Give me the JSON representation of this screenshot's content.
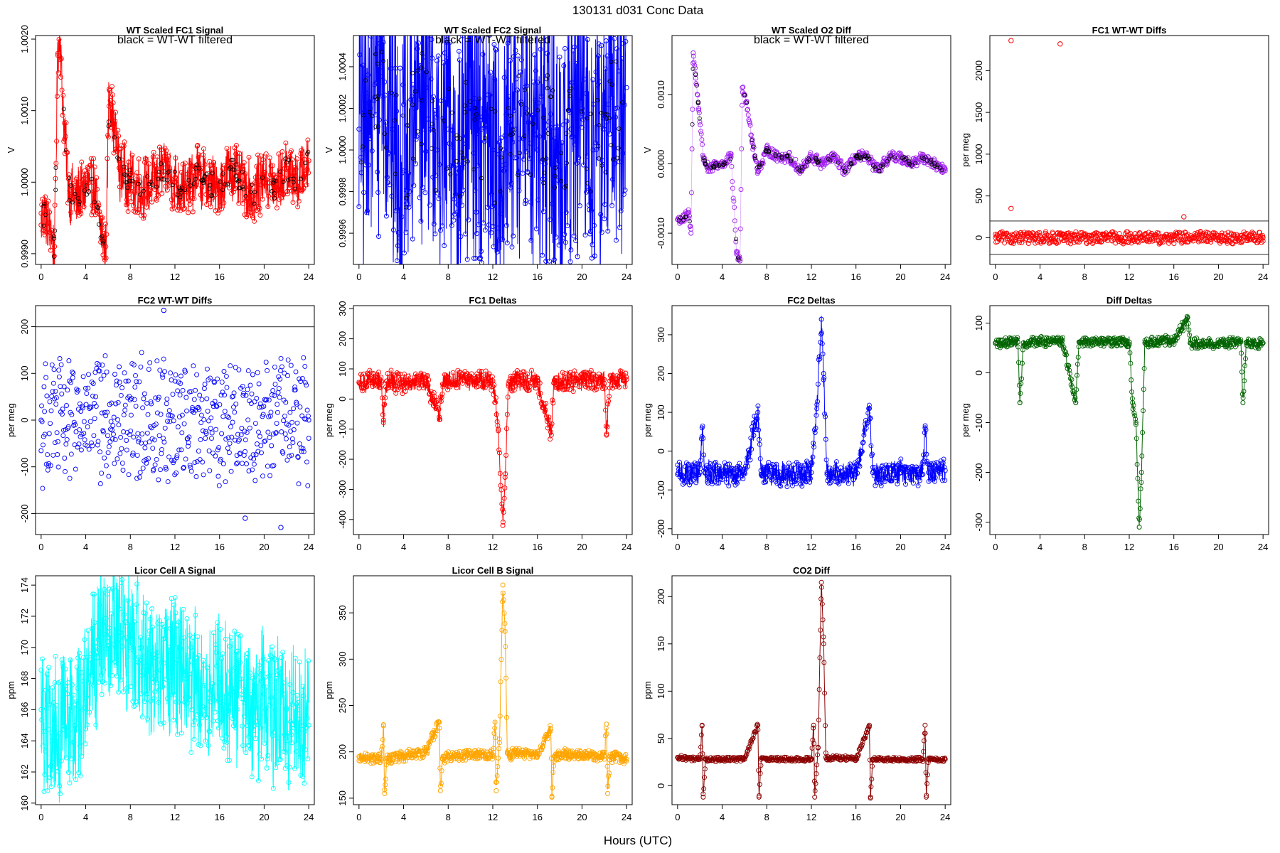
{
  "figure": {
    "title": "130131    d031    Conc Data",
    "xlabel": "Hours (UTC)",
    "colors": {
      "axis": "#000000",
      "annotation": "#000000",
      "ref_line": "#555555"
    }
  },
  "chart_data": [
    {
      "type": "line",
      "title": "WT Scaled FC1 Signal",
      "ylabel": "V",
      "annotation": "black = WT-WT filtered",
      "color": "#ff0000",
      "overlay_color": "#000000",
      "x_ticks": [
        0,
        4,
        8,
        12,
        16,
        20,
        24
      ],
      "xlim": [
        -0.5,
        24.5
      ],
      "y_ticks": [
        0.999,
        1.0,
        1.001,
        1.002
      ],
      "y_tick_labels": [
        "0.9990",
        "1.0000",
        "1.0010",
        "1.0020"
      ],
      "ylim": [
        0.99885,
        1.00205
      ],
      "x": [
        0,
        0.4,
        0.8,
        1.2,
        1.5,
        1.7,
        2.1,
        2.6,
        3.2,
        4,
        4.6,
        5.1,
        5.5,
        5.8,
        6.1,
        7,
        8,
        9,
        10,
        11,
        12,
        13,
        14,
        15,
        16,
        17,
        18,
        19,
        20,
        21,
        22,
        23,
        24
      ],
      "values": [
        0.9994,
        0.9996,
        0.9993,
        0.9991,
        1.0018,
        1.0021,
        1.0006,
        0.9998,
        0.9998,
        0.9999,
        1.0,
        0.9996,
        0.9992,
        0.9991,
        1.0013,
        1.0002,
        1.0,
        0.9999,
        1.0,
        1.0002,
        1.0,
        0.9999,
        1.0001,
        1.0,
        0.9999,
        1.0002,
        1.0,
        0.9998,
        1.0001,
        0.9999,
        1.0002,
        1.0,
        1.0003
      ],
      "spread": 0.00055
    },
    {
      "type": "line",
      "title": "WT Scaled FC2 Signal",
      "ylabel": "V",
      "annotation": "black = WT-WT filtered",
      "color": "#0000ff",
      "overlay_color": "#000000",
      "x_ticks": [
        0,
        4,
        8,
        12,
        16,
        20,
        24
      ],
      "xlim": [
        -0.5,
        24.5
      ],
      "y_ticks": [
        0.9996,
        0.9998,
        1.0,
        1.0002,
        1.0004
      ],
      "y_tick_labels": [
        "0.9996",
        "0.9998",
        "1.0000",
        "1.0002",
        "1.0004"
      ],
      "ylim": [
        0.99945,
        1.00055
      ],
      "x": [
        0,
        1,
        2,
        3,
        4,
        5,
        6,
        7,
        8,
        9,
        10,
        11,
        12,
        13,
        14,
        15,
        16,
        17,
        18,
        19,
        20,
        21,
        22,
        23,
        24
      ],
      "values": [
        1.0001,
        1.0002,
        1.0004,
        1.0001,
        0.9999,
        1.0002,
        1.0003,
        1.0,
        1.0001,
        0.9999,
        1.0002,
        1.0001,
        1.0,
        0.9999,
        1.0001,
        1.0002,
        1.0,
        1.0001,
        0.9999,
        1.0001,
        1.0002,
        1.0,
        1.0001,
        1.0002,
        1.0003
      ],
      "spread": 0.0009
    },
    {
      "type": "scatter",
      "title": "WT Scaled O2 Diff",
      "ylabel": "V",
      "annotation": "black = WT-WT filtered",
      "color": "#a020f0",
      "overlay_color": "#000000",
      "x_ticks": [
        0,
        4,
        8,
        12,
        16,
        20,
        24
      ],
      "xlim": [
        -0.5,
        24.5
      ],
      "y_ticks": [
        -0.001,
        0.0,
        0.001
      ],
      "y_tick_labels": [
        "-0.0010",
        "0.0000",
        "0.0010"
      ],
      "ylim": [
        -0.00145,
        0.00185
      ],
      "x": [
        0,
        0.6,
        1.0,
        1.2,
        1.4,
        1.6,
        1.9,
        2.3,
        2.8,
        3.5,
        4.2,
        4.8,
        5.3,
        5.6,
        5.8,
        6.2,
        6.7,
        7.2,
        8,
        9,
        10,
        11,
        12,
        13,
        14,
        15,
        16,
        17,
        18,
        19,
        20,
        21,
        22,
        23,
        24
      ],
      "values": [
        -0.0008,
        -0.0008,
        -0.0007,
        -0.001,
        0.0016,
        0.0013,
        0.0008,
        0.0001,
        -0.0001,
        0.0,
        0.0,
        0.0001,
        -0.0013,
        -0.0014,
        0.0011,
        0.0009,
        0.0003,
        -0.0001,
        0.0002,
        0.0001,
        0.0001,
        -0.0001,
        0.0001,
        0.0,
        0.0001,
        -0.0001,
        0.0001,
        0.0001,
        -0.0001,
        0.0001,
        0.0001,
        0.0,
        0.0001,
        0.0,
        -0.0001
      ],
      "spread": 0.0001
    },
    {
      "type": "scatter",
      "title": "FC1 WT-WT Diffs",
      "ylabel": "per meg",
      "color": "#ff0000",
      "x_ticks": [
        0,
        4,
        8,
        12,
        16,
        20,
        24
      ],
      "xlim": [
        -0.5,
        24.5
      ],
      "y_ticks": [
        0,
        500,
        1000,
        1500,
        2000
      ],
      "y_tick_labels": [
        "0",
        "500",
        "1000",
        "1500",
        "2000"
      ],
      "ylim": [
        -320,
        2420
      ],
      "hlines": [
        200,
        -200
      ],
      "outliers": [
        [
          1.4,
          2360
        ],
        [
          5.8,
          2320
        ],
        [
          1.4,
          350
        ],
        [
          16.9,
          250
        ]
      ],
      "x": [
        0,
        24
      ],
      "values": [
        0,
        0
      ],
      "spread": 90
    },
    {
      "type": "scatter",
      "title": "FC2 WT-WT Diffs",
      "ylabel": "per meg",
      "color": "#0000ff",
      "x_ticks": [
        0,
        4,
        8,
        12,
        16,
        20,
        24
      ],
      "xlim": [
        -0.5,
        24.5
      ],
      "y_ticks": [
        -200,
        -100,
        0,
        100,
        200
      ],
      "y_tick_labels": [
        "-200",
        "-100",
        "0",
        "100",
        "200"
      ],
      "ylim": [
        -245,
        245
      ],
      "hlines": [
        200,
        -200
      ],
      "outliers": [
        [
          11,
          235
        ],
        [
          21.5,
          -230
        ],
        [
          18.3,
          -210
        ]
      ],
      "x": [
        0,
        24
      ],
      "values": [
        0,
        0
      ],
      "spread": 170
    },
    {
      "type": "line",
      "title": "FC1 Deltas",
      "ylabel": "per meg",
      "color": "#ff0000",
      "x_ticks": [
        0,
        4,
        8,
        12,
        16,
        20,
        24
      ],
      "xlim": [
        -0.5,
        24.5
      ],
      "y_ticks": [
        -400,
        -300,
        -200,
        -100,
        0,
        100,
        200,
        300
      ],
      "y_tick_labels": [
        "-400",
        "-300",
        "-200",
        "-100",
        "0",
        "100",
        "200",
        "300"
      ],
      "ylim": [
        -450,
        310
      ],
      "x": [
        0,
        2,
        2.2,
        2.5,
        4,
        6,
        7.2,
        7.5,
        8,
        10,
        12,
        12.5,
        12.9,
        13.1,
        13.4,
        14,
        16,
        17.2,
        17.5,
        18,
        20,
        22,
        22.2,
        22.5,
        24
      ],
      "values": [
        55,
        60,
        -70,
        60,
        55,
        60,
        -60,
        50,
        60,
        65,
        60,
        -100,
        -420,
        -260,
        50,
        60,
        60,
        -110,
        55,
        60,
        60,
        65,
        -120,
        60,
        65
      ],
      "spread": 45
    },
    {
      "type": "line",
      "title": "FC2 Deltas",
      "ylabel": "per meg",
      "color": "#0000ff",
      "x_ticks": [
        0,
        4,
        8,
        12,
        16,
        20,
        24
      ],
      "xlim": [
        -0.5,
        24.5
      ],
      "y_ticks": [
        -200,
        -100,
        0,
        100,
        200,
        300
      ],
      "y_tick_labels": [
        "-200",
        "-100",
        "0",
        "100",
        "200",
        "300"
      ],
      "ylim": [
        -215,
        375
      ],
      "x": [
        0,
        2,
        2.2,
        2.5,
        4,
        6,
        7.2,
        7.5,
        8,
        10,
        12,
        12.5,
        12.9,
        13.1,
        13.4,
        14,
        16,
        17.2,
        17.5,
        18,
        20,
        22,
        22.2,
        22.5,
        24
      ],
      "values": [
        -60,
        -55,
        60,
        -55,
        -60,
        -55,
        100,
        -60,
        -55,
        -60,
        -55,
        120,
        340,
        200,
        -60,
        -55,
        -60,
        110,
        -55,
        -60,
        -55,
        -60,
        60,
        -55,
        -50
      ],
      "spread": 40
    },
    {
      "type": "line",
      "title": "Diff Deltas",
      "ylabel": "per meg",
      "color": "#006400",
      "x_ticks": [
        0,
        4,
        8,
        12,
        16,
        20,
        24
      ],
      "xlim": [
        -0.5,
        24.5
      ],
      "y_ticks": [
        -300,
        -200,
        -100,
        0,
        100
      ],
      "y_tick_labels": [
        "-300",
        "-200",
        "-100",
        "0",
        "100"
      ],
      "ylim": [
        -325,
        135
      ],
      "x": [
        0,
        2,
        2.2,
        2.5,
        4,
        6,
        7.2,
        7.5,
        8,
        10,
        12,
        12.3,
        12.6,
        12.9,
        13.1,
        13.4,
        14,
        16,
        17.2,
        17.5,
        18,
        20,
        22,
        22.2,
        22.5,
        24
      ],
      "values": [
        60,
        62,
        -60,
        60,
        62,
        65,
        -60,
        62,
        62,
        64,
        62,
        -60,
        -100,
        -310,
        -200,
        60,
        62,
        64,
        110,
        60,
        58,
        60,
        62,
        -60,
        60,
        60
      ],
      "spread": 14
    },
    {
      "type": "line",
      "title": "Licor Cell A Signal",
      "ylabel": "ppm",
      "color": "#00ffff",
      "x_ticks": [
        0,
        4,
        8,
        12,
        16,
        20,
        24
      ],
      "xlim": [
        -0.5,
        24.5
      ],
      "y_ticks": [
        160,
        162,
        164,
        166,
        168,
        170,
        172,
        174
      ],
      "y_tick_labels": [
        "160",
        "162",
        "164",
        "166",
        "168",
        "170",
        "172",
        "174"
      ],
      "ylim": [
        159.9,
        174.6
      ],
      "x": [
        0,
        1,
        2,
        3,
        4,
        5,
        6,
        7,
        8,
        9,
        10,
        11,
        12,
        13,
        14,
        15,
        16,
        17,
        18,
        19,
        20,
        21,
        22,
        23,
        24
      ],
      "values": [
        166,
        164,
        165,
        165,
        167,
        170,
        171,
        171,
        170,
        170,
        168,
        169,
        169,
        168,
        168,
        167,
        168,
        167,
        167,
        166,
        167,
        166,
        166,
        166,
        165
      ],
      "spread": 6
    },
    {
      "type": "line",
      "title": "Licor Cell B Signal",
      "ylabel": "ppm",
      "color": "#ffa500",
      "x_ticks": [
        0,
        4,
        8,
        12,
        16,
        20,
        24
      ],
      "xlim": [
        -0.5,
        24.5
      ],
      "y_ticks": [
        150,
        200,
        250,
        300,
        350
      ],
      "y_tick_labels": [
        "150",
        "200",
        "250",
        "300",
        "350"
      ],
      "ylim": [
        143,
        390
      ],
      "x": [
        0,
        2,
        2.2,
        2.3,
        2.5,
        4,
        6,
        7.2,
        7.3,
        7.5,
        8,
        10,
        12,
        12.2,
        12.3,
        12.6,
        12.9,
        13.1,
        13.3,
        13.6,
        14,
        16,
        17.2,
        17.3,
        17.5,
        18,
        20,
        22,
        22.2,
        22.3,
        22.5,
        24
      ],
      "values": [
        195,
        192,
        228,
        155,
        193,
        195,
        200,
        232,
        158,
        192,
        195,
        198,
        195,
        232,
        158,
        210,
        380,
        330,
        200,
        195,
        200,
        195,
        225,
        152,
        195,
        198,
        196,
        195,
        230,
        155,
        195,
        192
      ],
      "spread": 8
    },
    {
      "type": "line",
      "title": "CO2 Diff",
      "ylabel": "ppm",
      "color": "#8b0000",
      "x_ticks": [
        0,
        4,
        8,
        12,
        16,
        20,
        24
      ],
      "xlim": [
        -0.5,
        24.5
      ],
      "y_ticks": [
        0,
        50,
        100,
        150,
        200
      ],
      "y_tick_labels": [
        "0",
        "50",
        "100",
        "150",
        "200"
      ],
      "ylim": [
        -20,
        222
      ],
      "x": [
        0,
        2,
        2.2,
        2.3,
        2.5,
        4,
        6,
        7.2,
        7.3,
        7.5,
        8,
        10,
        12,
        12.2,
        12.3,
        12.6,
        12.9,
        13.1,
        13.3,
        13.6,
        14,
        16,
        17.2,
        17.3,
        17.5,
        18,
        20,
        22,
        22.2,
        22.3,
        22.5,
        24
      ],
      "values": [
        30,
        28,
        64,
        -12,
        28,
        28,
        28,
        64,
        -12,
        28,
        28,
        28,
        28,
        64,
        -12,
        40,
        215,
        150,
        30,
        28,
        30,
        28,
        64,
        -12,
        28,
        28,
        28,
        28,
        64,
        -12,
        28,
        28
      ],
      "spread": 3
    }
  ]
}
